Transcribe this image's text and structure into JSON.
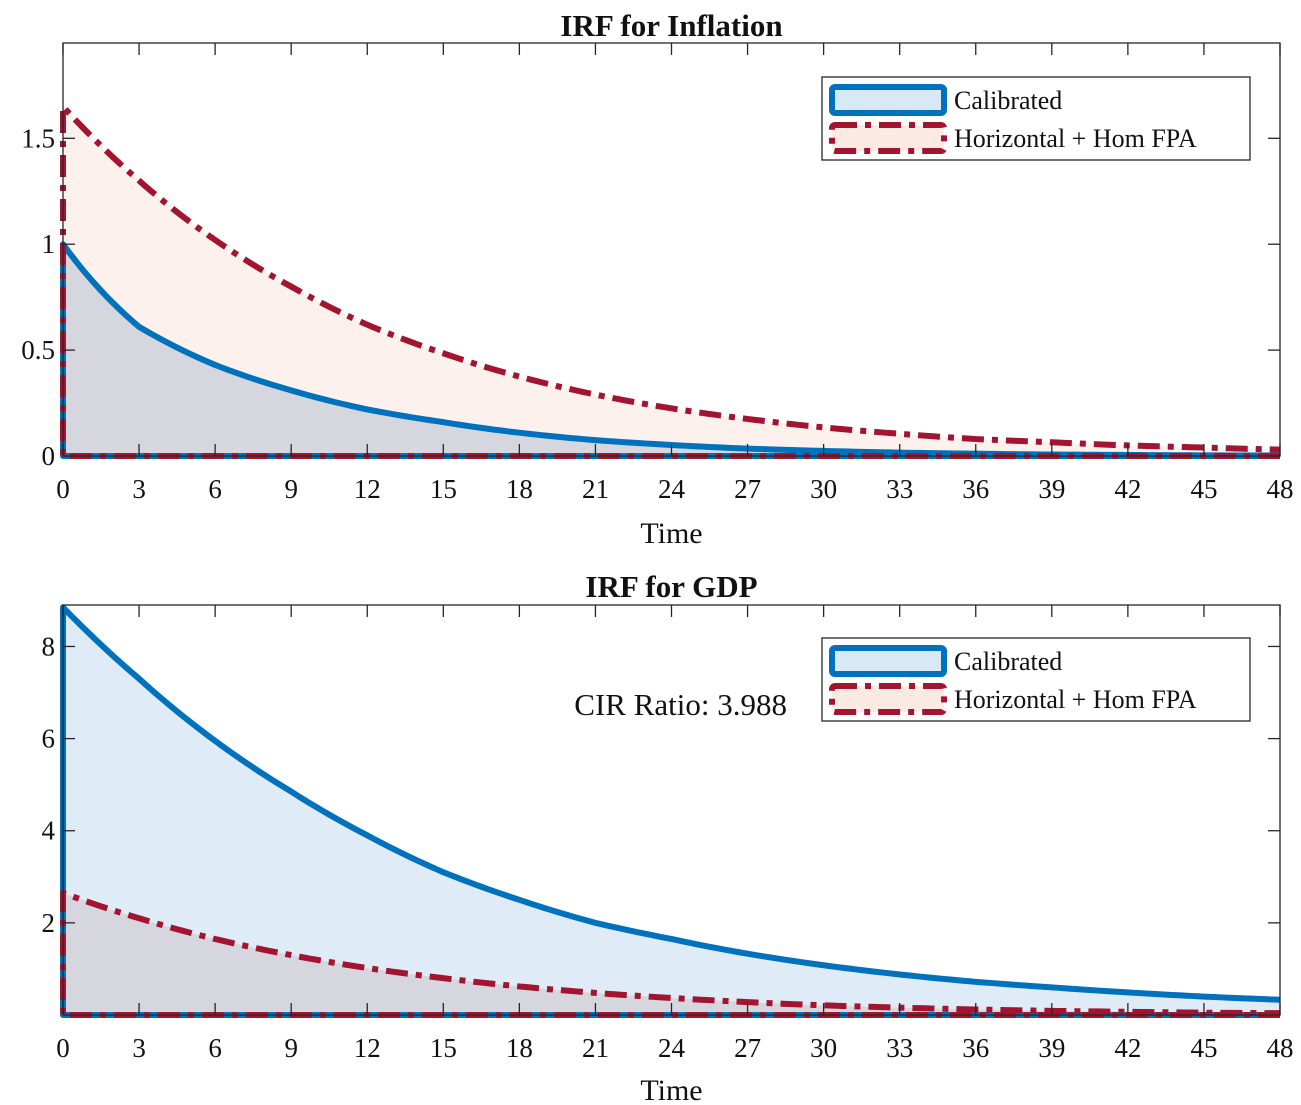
{
  "chart_data": [
    {
      "type": "area",
      "title": "IRF for Inflation",
      "xlabel": "Time",
      "ylabel": "",
      "xlim": [
        0,
        48
      ],
      "ylim": [
        0,
        1.95
      ],
      "xticks": [
        0,
        3,
        6,
        9,
        12,
        15,
        18,
        21,
        24,
        27,
        30,
        33,
        36,
        39,
        42,
        45,
        48
      ],
      "xtick_labels": [
        "0",
        "3",
        "6",
        "9",
        "12",
        "15",
        "18",
        "21",
        "24",
        "27",
        "30",
        "33",
        "36",
        "39",
        "42",
        "45",
        "48"
      ],
      "yticks": [
        0,
        0.5,
        1,
        1.5
      ],
      "ytick_labels": [
        "0",
        "0.5",
        "1",
        "1.5"
      ],
      "grid": false,
      "legend_position": "top-right",
      "annotation": "",
      "series": [
        {
          "name": "Calibrated",
          "color": "#0072BD",
          "fill": "#D9E8F5",
          "style": "solid",
          "x": [
            0,
            3,
            6,
            9,
            12,
            15,
            18,
            21,
            24,
            27,
            30,
            33,
            36,
            39,
            42,
            45,
            48
          ],
          "values": [
            1.0,
            0.61,
            0.43,
            0.31,
            0.22,
            0.16,
            0.11,
            0.075,
            0.052,
            0.035,
            0.024,
            0.016,
            0.011,
            0.007,
            0.005,
            0.003,
            0.002
          ]
        },
        {
          "name": "Horizontal + Hom FPA",
          "color": "#A2142F",
          "fill": "#FBE9E4",
          "style": "dashdot",
          "x": [
            0,
            3,
            6,
            9,
            12,
            15,
            18,
            21,
            24,
            27,
            30,
            33,
            36,
            39,
            42,
            45,
            48
          ],
          "values": [
            1.65,
            1.3,
            1.02,
            0.8,
            0.62,
            0.485,
            0.375,
            0.29,
            0.225,
            0.175,
            0.135,
            0.105,
            0.08,
            0.065,
            0.05,
            0.04,
            0.03
          ]
        }
      ]
    },
    {
      "type": "area",
      "title": "IRF for GDP",
      "xlabel": "Time",
      "ylabel": "",
      "xlim": [
        0,
        48
      ],
      "ylim": [
        0,
        8.9
      ],
      "xticks": [
        0,
        3,
        6,
        9,
        12,
        15,
        18,
        21,
        24,
        27,
        30,
        33,
        36,
        39,
        42,
        45,
        48
      ],
      "xtick_labels": [
        "0",
        "3",
        "6",
        "9",
        "12",
        "15",
        "18",
        "21",
        "24",
        "27",
        "30",
        "33",
        "36",
        "39",
        "42",
        "45",
        "48"
      ],
      "yticks": [
        2,
        4,
        6,
        8
      ],
      "ytick_labels": [
        "2",
        "4",
        "6",
        "8"
      ],
      "grid": false,
      "legend_position": "top-right",
      "annotation": "CIR Ratio:  3.988",
      "series": [
        {
          "name": "Calibrated",
          "color": "#0072BD",
          "fill": "#D9E8F5",
          "style": "solid",
          "x": [
            0,
            3,
            6,
            9,
            12,
            15,
            18,
            21,
            24,
            27,
            30,
            33,
            36,
            39,
            42,
            45,
            48
          ],
          "values": [
            8.85,
            7.3,
            5.95,
            4.85,
            3.9,
            3.1,
            2.5,
            2.0,
            1.65,
            1.33,
            1.08,
            0.88,
            0.72,
            0.6,
            0.49,
            0.4,
            0.33
          ]
        },
        {
          "name": "Horizontal + Hom FPA",
          "color": "#A2142F",
          "fill": "#FBE9E4",
          "style": "dashdot",
          "x": [
            0,
            3,
            6,
            9,
            12,
            15,
            18,
            21,
            24,
            27,
            30,
            33,
            36,
            39,
            42,
            45,
            48
          ],
          "values": [
            2.65,
            2.1,
            1.65,
            1.3,
            1.02,
            0.8,
            0.62,
            0.48,
            0.37,
            0.28,
            0.21,
            0.16,
            0.12,
            0.09,
            0.07,
            0.05,
            0.04
          ]
        }
      ]
    }
  ]
}
